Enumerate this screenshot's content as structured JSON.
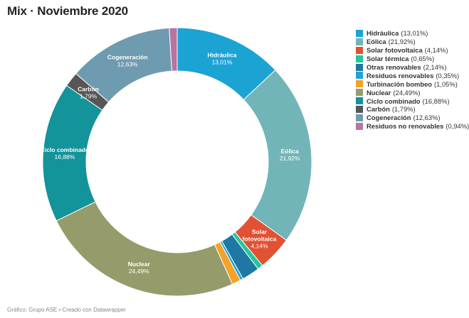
{
  "title": "Mix · Noviembre 2020",
  "footer": "Gráfico: Grupo ASE • Creado con Datawrapper",
  "chart_data": {
    "type": "pie",
    "variant": "donut",
    "title": "Mix · Noviembre 2020",
    "legend_position": "right",
    "slices": [
      {
        "name": "Hidráulica",
        "value": 13.01,
        "label": "13,01%",
        "color": "#1ba3d4",
        "show_label": true
      },
      {
        "name": "Eólica",
        "value": 21.92,
        "label": "21,92%",
        "color": "#71b5b8",
        "show_label": true
      },
      {
        "name": "Solar fotovoltaica",
        "value": 4.14,
        "label": "4,14%",
        "color": "#e05233",
        "show_label": true
      },
      {
        "name": "Solar térmica",
        "value": 0.65,
        "label": "0,65%",
        "color": "#22c79a",
        "show_label": false
      },
      {
        "name": "Otras renovables",
        "value": 2.14,
        "label": "2,14%",
        "color": "#1f78a3",
        "show_label": false
      },
      {
        "name": "Residuos renovables",
        "value": 0.35,
        "label": "0,35%",
        "color": "#1fa3d9",
        "show_label": false
      },
      {
        "name": "Turbinación bombeo",
        "value": 1.05,
        "label": "1,05%",
        "color": "#f4a228",
        "show_label": false
      },
      {
        "name": "Nuclear",
        "value": 24.49,
        "label": "24,49%",
        "color": "#969b6b",
        "show_label": true
      },
      {
        "name": "Ciclo combinado",
        "value": 16.88,
        "label": "16,88%",
        "color": "#13939a",
        "show_label": true
      },
      {
        "name": "Carbón",
        "value": 1.79,
        "label": "1,79%",
        "color": "#565656",
        "show_label": true
      },
      {
        "name": "Cogeneración",
        "value": 12.63,
        "label": "12,63%",
        "color": "#6f9bb0",
        "show_label": true
      },
      {
        "name": "Residuos no renovables",
        "value": 0.94,
        "label": "0,94%",
        "color": "#b775a0",
        "show_label": false
      }
    ]
  }
}
